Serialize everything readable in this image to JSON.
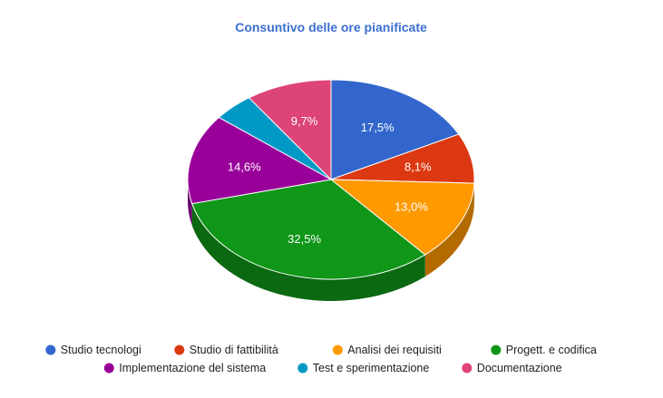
{
  "chart_data": {
    "type": "pie",
    "style": "3d",
    "title": "Consuntivo delle ore pianificate",
    "title_color": "#3a6fd0",
    "legend_position": "bottom",
    "slices": [
      {
        "label": "Studio tecnologi",
        "value": 17.5,
        "value_label": "17,5%",
        "color": "#3366cc",
        "side_color": "#24478f"
      },
      {
        "label": "Studio di fattibilità",
        "value": 8.1,
        "value_label": "8,1%",
        "color": "#dc3912",
        "side_color": "#9a280d"
      },
      {
        "label": "Analisi dei requisiti",
        "value": 13.0,
        "value_label": "13,0%",
        "color": "#ff9900",
        "side_color": "#b36b00"
      },
      {
        "label": "Progett. e codifica",
        "value": 32.5,
        "value_label": "32,5%",
        "color": "#109618",
        "side_color": "#0b6911"
      },
      {
        "label": "Implementazione del sistema",
        "value": 14.6,
        "value_label": "14,6%",
        "color": "#990099",
        "side_color": "#6b006b"
      },
      {
        "label": "Test e sperimentazione",
        "value": 4.6,
        "value_label": "",
        "color": "#0099c6",
        "side_color": "#006b8b"
      },
      {
        "label": "Documentazione",
        "value": 9.7,
        "value_label": "9,7%",
        "color": "#dd4477",
        "side_color": "#9b3053"
      }
    ]
  }
}
